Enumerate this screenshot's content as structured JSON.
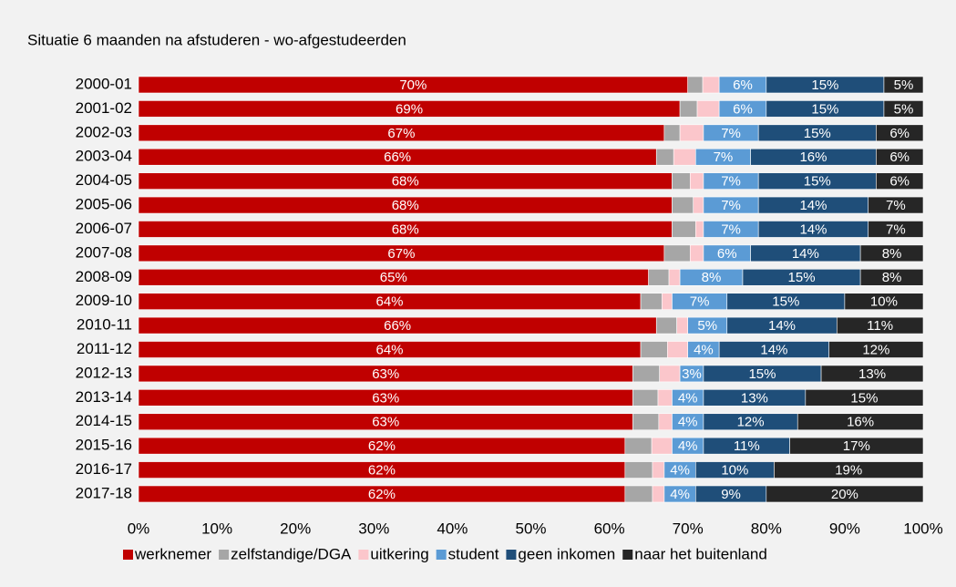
{
  "chart_data": {
    "type": "stacked-bar-horizontal",
    "title": "Situatie 6 maanden na afstuderen - wo-afgestudeerden",
    "categories": [
      "2000-01",
      "2001-02",
      "2002-03",
      "2003-04",
      "2004-05",
      "2005-06",
      "2006-07",
      "2007-08",
      "2008-09",
      "2009-10",
      "2010-11",
      "2011-12",
      "2012-13",
      "2013-14",
      "2014-15",
      "2015-16",
      "2016-17",
      "2017-18"
    ],
    "series": [
      {
        "name": "werknemer",
        "color": "#c00000",
        "values": [
          70,
          69,
          67,
          66,
          68,
          68,
          68,
          67,
          65,
          64,
          66,
          64,
          63,
          63,
          63,
          62,
          62,
          62
        ],
        "value_labels": [
          "70%",
          "69%",
          "67%",
          "66%",
          "68%",
          "68%",
          "68%",
          "67%",
          "65%",
          "64%",
          "66%",
          "64%",
          "63%",
          "63%",
          "63%",
          "62%",
          "62%",
          "62%"
        ]
      },
      {
        "name": "zelfstandige/DGA",
        "color": "#a6a6a6",
        "values": [
          1.9,
          2.2,
          2,
          2.2,
          2.3,
          2.7,
          3,
          3.3,
          2.6,
          2.7,
          2.6,
          3.4,
          3.4,
          3.2,
          3.3,
          3.4,
          3.5,
          3.5
        ]
      },
      {
        "name": "uitkering",
        "color": "#fbc6cb",
        "values": [
          2.1,
          2.8,
          3,
          2.8,
          1.7,
          1.3,
          1,
          1.7,
          1.4,
          1.3,
          1.4,
          2.6,
          2.6,
          1.8,
          1.7,
          2.6,
          1.5,
          1.5
        ]
      },
      {
        "name": "student",
        "color": "#5b9bd5",
        "values": [
          6,
          6,
          7,
          7,
          7,
          7,
          7,
          6,
          8,
          7,
          5,
          4,
          3,
          4,
          4,
          4,
          4,
          4
        ],
        "value_labels": [
          "6%",
          "6%",
          "7%",
          "7%",
          "7%",
          "7%",
          "7%",
          "6%",
          "8%",
          "7%",
          "5%",
          "4%",
          "3%",
          "4%",
          "4%",
          "4%",
          "4%",
          "4%"
        ]
      },
      {
        "name": "geen inkomen",
        "color": "#1f4e79",
        "values": [
          15,
          15,
          15,
          16,
          15,
          14,
          14,
          14,
          15,
          15,
          14,
          14,
          15,
          13,
          12,
          11,
          10,
          9
        ],
        "value_labels": [
          "15%",
          "15%",
          "15%",
          "16%",
          "15%",
          "14%",
          "14%",
          "14%",
          "15%",
          "15%",
          "14%",
          "14%",
          "15%",
          "13%",
          "12%",
          "11%",
          "10%",
          "9%"
        ]
      },
      {
        "name": "naar het buitenland",
        "color": "#262626",
        "values": [
          5,
          5,
          6,
          6,
          6,
          7,
          7,
          8,
          8,
          10,
          11,
          12,
          13,
          15,
          16,
          17,
          19,
          20
        ],
        "value_labels": [
          "5%",
          "5%",
          "6%",
          "6%",
          "6%",
          "7%",
          "7%",
          "8%",
          "8%",
          "10%",
          "11%",
          "12%",
          "13%",
          "15%",
          "16%",
          "17%",
          "19%",
          "20%"
        ]
      }
    ],
    "xlim": [
      0,
      100
    ],
    "xticks": [
      {
        "value": 0,
        "label": "0%"
      },
      {
        "value": 10,
        "label": "10%"
      },
      {
        "value": 20,
        "label": "20%"
      },
      {
        "value": 30,
        "label": "30%"
      },
      {
        "value": 40,
        "label": "40%"
      },
      {
        "value": 50,
        "label": "50%"
      },
      {
        "value": 60,
        "label": "60%"
      },
      {
        "value": 70,
        "label": "70%"
      },
      {
        "value": 80,
        "label": "80%"
      },
      {
        "value": 90,
        "label": "90%"
      },
      {
        "value": 100,
        "label": "100%"
      }
    ],
    "legend": "bottom"
  }
}
